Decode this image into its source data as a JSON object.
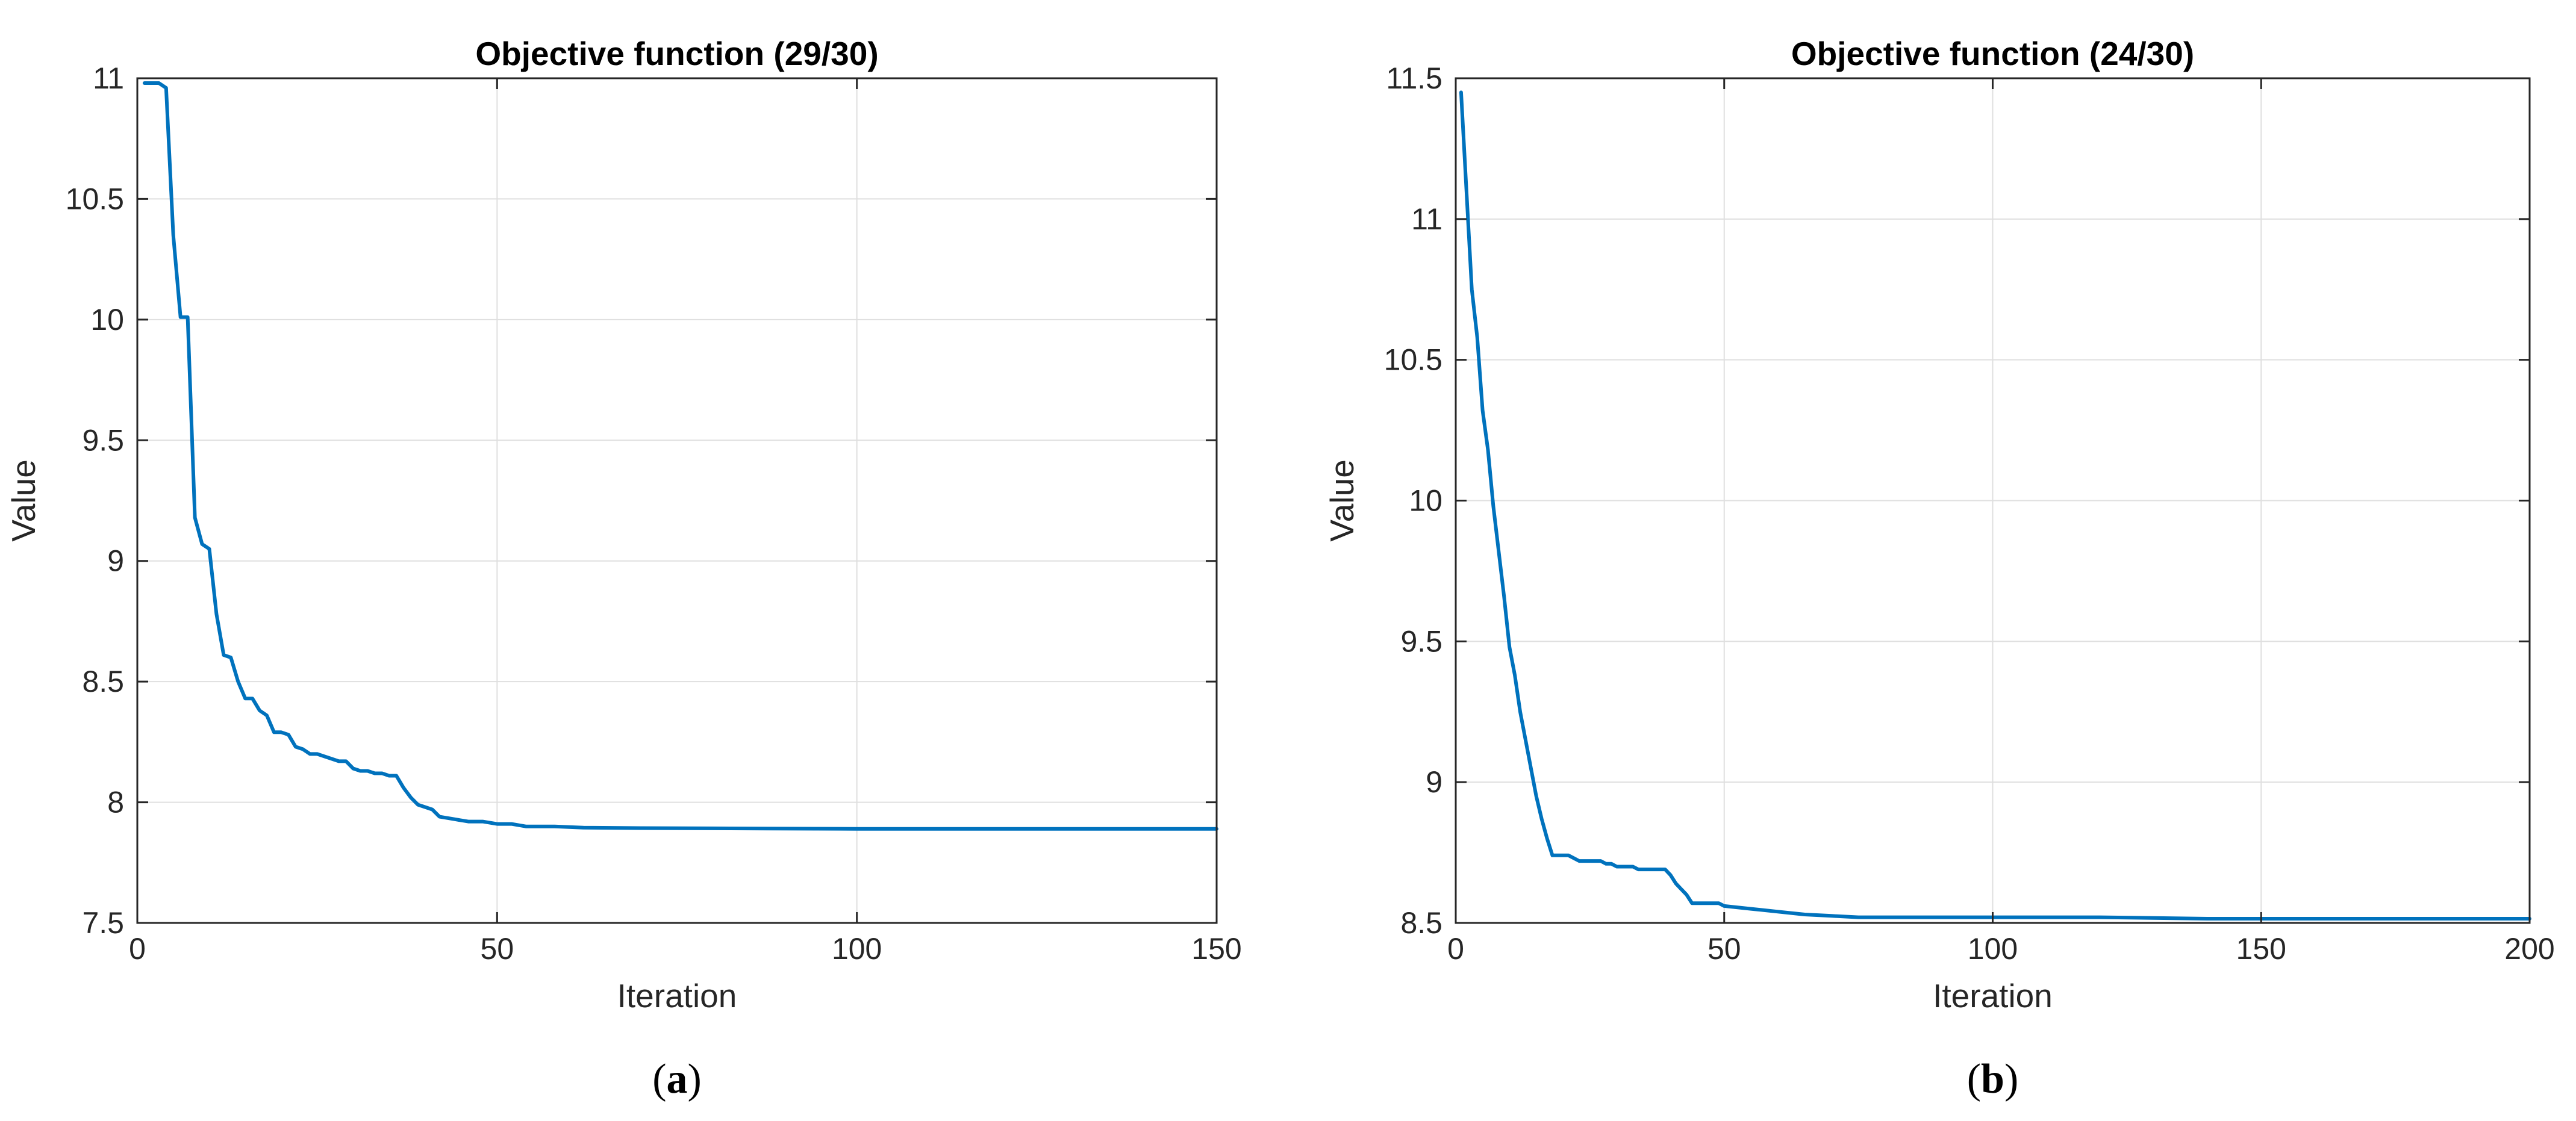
{
  "colors": {
    "series": "#0072BD",
    "axis": "#262626",
    "grid": "#dfdfdf"
  },
  "panels": [
    {
      "caption": {
        "open": "(",
        "letter": "a",
        "close": ")"
      },
      "chart_data": {
        "type": "line",
        "title": "Objective function (29/30)",
        "xlabel": "Iteration",
        "ylabel": "Value",
        "xlim": [
          0,
          150
        ],
        "ylim": [
          7.5,
          11
        ],
        "xticks": [
          0,
          50,
          100,
          150
        ],
        "xtick_labels": [
          "0",
          "50",
          "100",
          "150"
        ],
        "yticks": [
          7.5,
          8,
          8.5,
          9,
          9.5,
          10,
          10.5,
          11
        ],
        "ytick_labels": [
          "7.5",
          "8",
          "8.5",
          "9",
          "9.5",
          "10",
          "10.5",
          "11"
        ],
        "grid": true,
        "series": [
          {
            "x": [
              1,
              3,
              4,
              5,
              6,
              7,
              8,
              9,
              10,
              11,
              12,
              13,
              14,
              15,
              16,
              17,
              18,
              19,
              20,
              21,
              22,
              23,
              24,
              25,
              26,
              27,
              28,
              29,
              30,
              31,
              32,
              33,
              34,
              35,
              36,
              37,
              38,
              39,
              40,
              41,
              42,
              44,
              46,
              48,
              50,
              52,
              54,
              58,
              62,
              70,
              80,
              100,
              150
            ],
            "y": [
              10.98,
              10.98,
              10.96,
              10.35,
              10.01,
              10.01,
              9.18,
              9.07,
              9.05,
              8.78,
              8.61,
              8.6,
              8.5,
              8.43,
              8.43,
              8.38,
              8.36,
              8.29,
              8.29,
              8.28,
              8.23,
              8.22,
              8.2,
              8.2,
              8.19,
              8.18,
              8.17,
              8.17,
              8.14,
              8.13,
              8.13,
              8.12,
              8.12,
              8.11,
              8.11,
              8.06,
              8.02,
              7.99,
              7.98,
              7.97,
              7.94,
              7.93,
              7.92,
              7.92,
              7.91,
              7.91,
              7.9,
              7.9,
              7.895,
              7.893,
              7.892,
              7.89,
              7.89
            ]
          }
        ]
      }
    },
    {
      "caption": {
        "open": "(",
        "letter": "b",
        "close": ")"
      },
      "chart_data": {
        "type": "line",
        "title": "Objective function (24/30)",
        "xlabel": "Iteration",
        "ylabel": "Value",
        "xlim": [
          0,
          200
        ],
        "ylim": [
          8.5,
          11.5
        ],
        "xticks": [
          0,
          50,
          100,
          150,
          200
        ],
        "xtick_labels": [
          "0",
          "50",
          "100",
          "150",
          "200"
        ],
        "yticks": [
          8.5,
          9,
          9.5,
          10,
          10.5,
          11,
          11.5
        ],
        "ytick_labels": [
          "8.5",
          "9",
          "9.5",
          "10",
          "10.5",
          "11",
          "11.5"
        ],
        "grid": true,
        "series": [
          {
            "x": [
              1,
              2,
              3,
              4,
              5,
              6,
              7,
              8,
              9,
              10,
              11,
              12,
              13,
              14,
              15,
              16,
              17,
              18,
              19,
              20,
              21,
              22,
              23,
              24,
              25,
              26,
              27,
              28,
              29,
              30,
              31,
              32,
              33,
              34,
              35,
              36,
              37,
              38,
              39,
              40,
              41,
              42,
              43,
              44,
              45,
              46,
              47,
              48,
              49,
              50,
              55,
              60,
              65,
              70,
              75,
              80,
              90,
              100,
              120,
              140,
              160,
              200
            ],
            "y": [
              11.45,
              11.1,
              10.75,
              10.58,
              10.32,
              10.18,
              9.98,
              9.82,
              9.66,
              9.48,
              9.38,
              9.25,
              9.15,
              9.05,
              8.95,
              8.87,
              8.8,
              8.74,
              8.74,
              8.74,
              8.74,
              8.73,
              8.72,
              8.72,
              8.72,
              8.72,
              8.72,
              8.71,
              8.71,
              8.7,
              8.7,
              8.7,
              8.7,
              8.69,
              8.69,
              8.69,
              8.69,
              8.69,
              8.69,
              8.67,
              8.64,
              8.62,
              8.6,
              8.57,
              8.57,
              8.57,
              8.57,
              8.57,
              8.57,
              8.56,
              8.55,
              8.54,
              8.53,
              8.525,
              8.52,
              8.52,
              8.52,
              8.52,
              8.52,
              8.515,
              8.515,
              8.515
            ]
          }
        ]
      }
    }
  ]
}
